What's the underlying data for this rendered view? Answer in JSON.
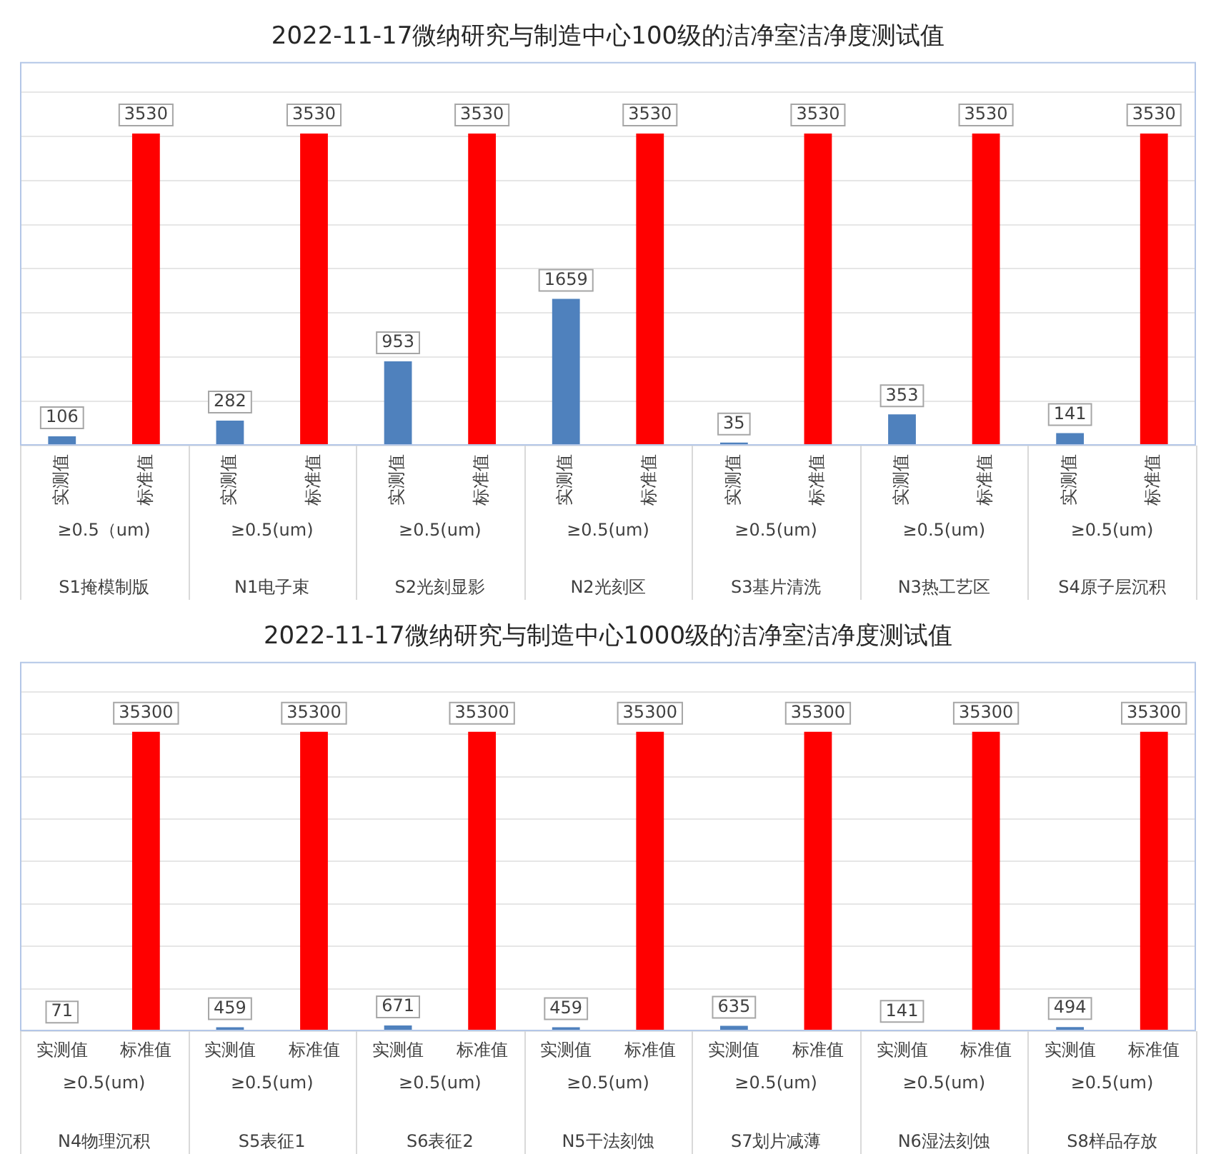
{
  "chart_data": [
    {
      "type": "bar",
      "title": "2022-11-17微纳研究与制造中心100级的洁净室洁净度测试值",
      "categories": [
        "S1掩模制版",
        "N1电子束",
        "S2光刻显影",
        "N2光刻区",
        "S3基片清洗",
        "N3热工艺区",
        "S4原子层沉积"
      ],
      "series": [
        {
          "name": "实测值",
          "color": "#4f81bd",
          "values": [
            106,
            282,
            953,
            1659,
            35,
            353,
            141
          ]
        },
        {
          "name": "标准值",
          "color": "#ff0000",
          "values": [
            3530,
            3530,
            3530,
            3530,
            3530,
            3530,
            3530
          ]
        }
      ],
      "annotations": [
        "≥0.5（um)",
        "≥0.5(um)",
        "≥0.5(um)",
        "≥0.5(um)",
        "≥0.5(um)",
        "≥0.5(um)",
        "≥0.5(um)"
      ],
      "data_labels": true,
      "grid": "y",
      "legend": false,
      "tick_labels": "x"
    },
    {
      "type": "bar",
      "title": "2022-11-17微纳研究与制造中心1000级的洁净室洁净度测试值",
      "categories": [
        "N4物理沉积",
        "S5表征1",
        "S6表征2",
        "N5干法刻蚀",
        "S7划片减薄",
        "N6湿法刻蚀",
        "S8样品存放"
      ],
      "series": [
        {
          "name": "实测值",
          "color": "#4f81bd",
          "values": [
            71,
            459,
            671,
            459,
            635,
            141,
            494
          ]
        },
        {
          "name": "标准值",
          "color": "#ff0000",
          "values": [
            35300,
            35300,
            35300,
            35300,
            35300,
            35300,
            35300
          ]
        }
      ],
      "annotations": [
        "≥0.5(um)",
        "≥0.5(um)",
        "≥0.5(um)",
        "≥0.5(um)",
        "≥0.5(um)",
        "≥0.5(um)",
        "≥0.5(um)"
      ],
      "data_labels": true,
      "grid": "y",
      "legend": false,
      "tick_labels": "x"
    }
  ]
}
